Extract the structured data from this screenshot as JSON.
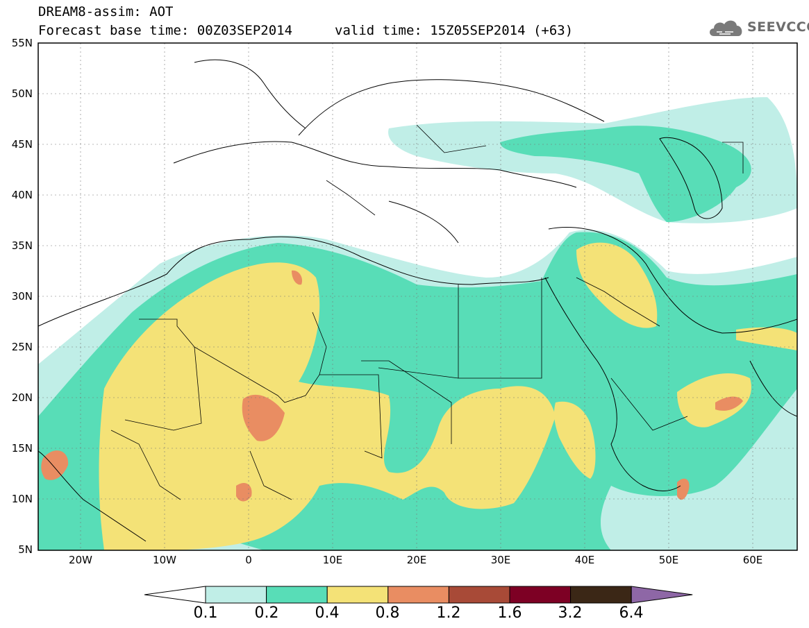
{
  "header": {
    "title": "DREAM8-assim: AOT",
    "base_time": "Forecast base time: 00Z03SEP2014",
    "valid_time": "valid time: 15Z05SEP2014 (+63)"
  },
  "logo": {
    "text": "SEEVCCC",
    "icon": "cloud-icon"
  },
  "map": {
    "lat_labels": [
      "55N",
      "50N",
      "45N",
      "40N",
      "35N",
      "30N",
      "25N",
      "20N",
      "15N",
      "10N",
      "5N"
    ],
    "lon_labels": [
      "20W",
      "10W",
      "0",
      "10E",
      "20E",
      "30E",
      "40E",
      "50E",
      "60E"
    ],
    "lon_range": [
      -25,
      65
    ],
    "lat_range": [
      5,
      55
    ]
  },
  "legend": {
    "levels": [
      "0.1",
      "0.2",
      "0.4",
      "0.8",
      "1.2",
      "1.6",
      "3.2",
      "6.4"
    ],
    "colors": [
      "#c0eee7",
      "#58ddb7",
      "#f4e277",
      "#e98d62",
      "#a84a37",
      "#7d0024",
      "#3b2716",
      "#8e67a6"
    ]
  }
}
